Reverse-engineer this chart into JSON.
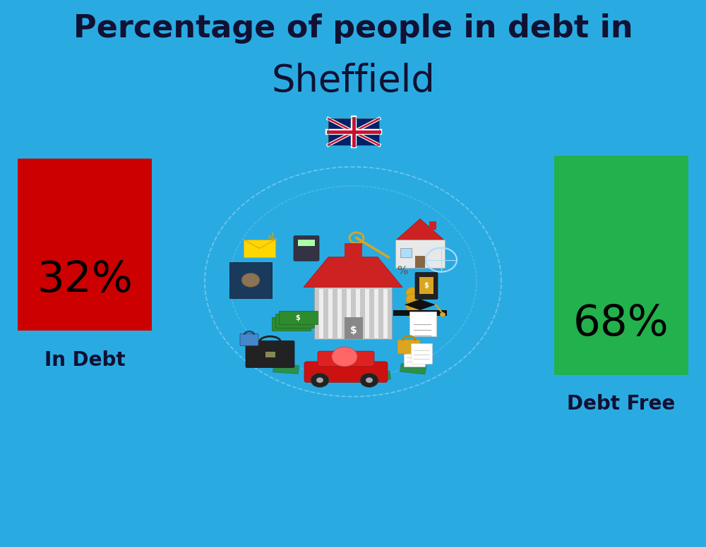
{
  "title_line1": "Percentage of people in debt in",
  "title_line2": "Sheffield",
  "background_color": "#29ABE2",
  "bar1_label": "In Debt",
  "bar1_color": "#CC0000",
  "bar1_pct_text": "32%",
  "bar2_label": "Debt Free",
  "bar2_color": "#22B14C",
  "bar2_pct_text": "68%",
  "title_color": "#111133",
  "label_color": "#111133",
  "pct_text_color": "#000000",
  "title_fontsize": 32,
  "subtitle_fontsize": 38,
  "label_fontsize": 20,
  "pct_fontsize": 44,
  "fig_width": 10.0,
  "fig_height": 7.76
}
